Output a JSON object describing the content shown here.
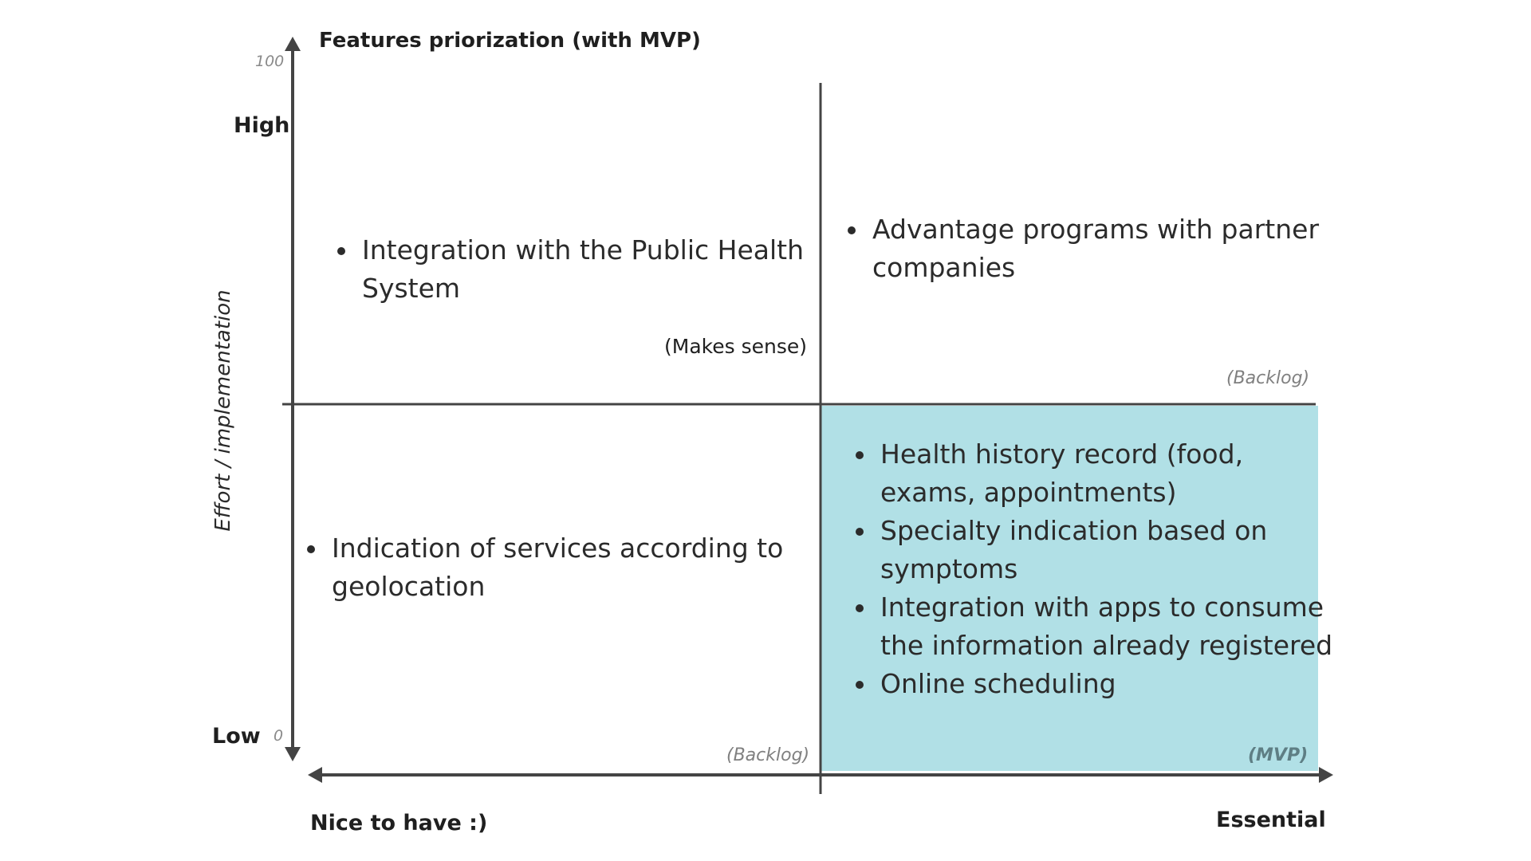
{
  "title": "Features priorization (with MVP)",
  "y_axis": {
    "label": "Effort / implementation",
    "tick_max": "100",
    "tick_min": "0",
    "level_high": "High",
    "level_low": "Low"
  },
  "x_axis": {
    "label_low": "Nice to have :)",
    "label_high": "Essential"
  },
  "quadrants": {
    "top_left": {
      "items": [
        "Integration with the Public Health System"
      ],
      "tag": "(Makes sense)"
    },
    "top_right": {
      "items": [
        "Advantage programs with partner companies"
      ],
      "tag": "(Backlog)"
    },
    "bottom_left": {
      "items": [
        "Indication of services according to geolocation"
      ],
      "tag": "(Backlog)"
    },
    "bottom_right": {
      "items": [
        "Health history record (food, exams, appointments)",
        "Specialty indication based on symptoms",
        "Integration with apps to consume the information already registered",
        "Online scheduling"
      ],
      "tag": "(MVP)",
      "highlight_color": "#b1e0e6"
    }
  },
  "colors": {
    "axis": "#444444",
    "tag_muted": "#808080",
    "mvp_tag": "#5e7e84"
  }
}
